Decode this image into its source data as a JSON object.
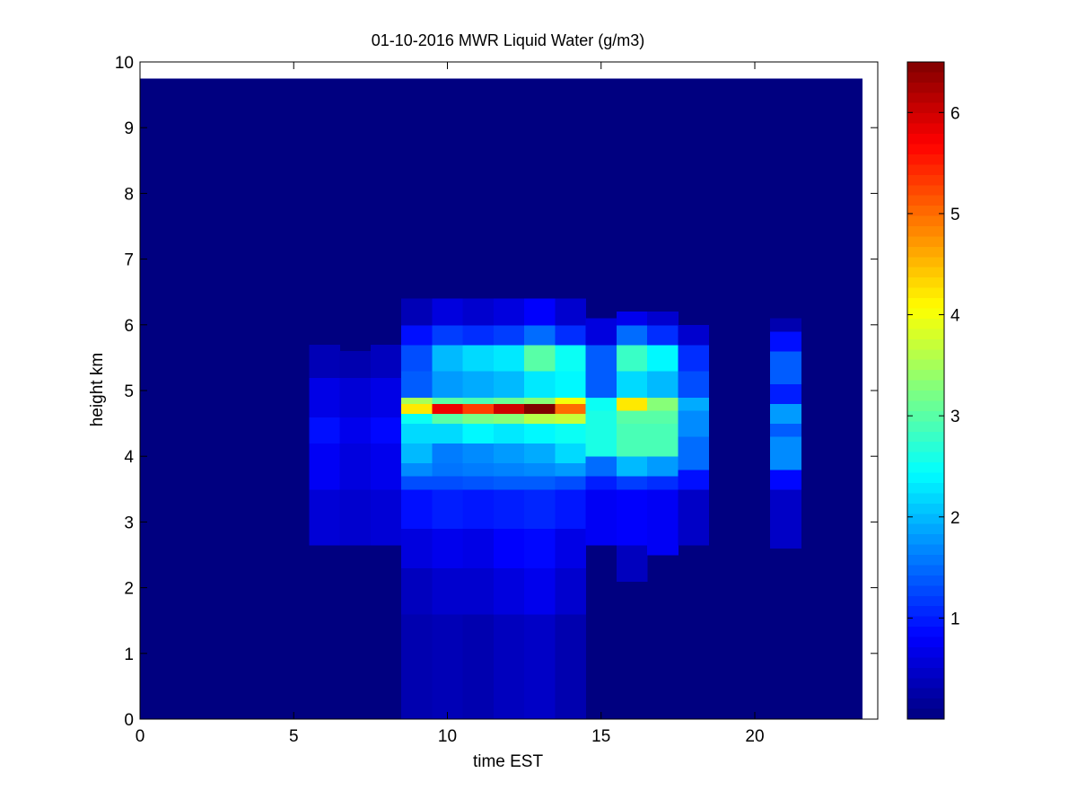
{
  "chart_data": {
    "type": "heatmap",
    "title": "01-10-2016 MWR Liquid Water (g/m3)",
    "xlabel": "time EST",
    "ylabel": "height km",
    "xlim": [
      0,
      24
    ],
    "ylim": [
      0,
      10
    ],
    "x_ticks": [
      0,
      5,
      10,
      15,
      20
    ],
    "y_ticks": [
      0,
      1,
      2,
      3,
      4,
      5,
      6,
      7,
      8,
      9,
      10
    ],
    "colorbar": {
      "range": [
        0,
        6.5
      ],
      "ticks": [
        1,
        2,
        3,
        4,
        5,
        6
      ],
      "colormap": "jet"
    },
    "field_extent": {
      "x": [
        0,
        23.5
      ],
      "y": [
        0,
        9.75
      ]
    },
    "background_value": 0,
    "columns": [
      {
        "x": [
          5.5,
          6.5
        ],
        "cells": [
          [
            2.65,
            3.5,
            0.55
          ],
          [
            3.5,
            4.2,
            0.75
          ],
          [
            4.2,
            4.6,
            0.9
          ],
          [
            4.6,
            5.2,
            0.65
          ],
          [
            5.2,
            5.7,
            0.35
          ]
        ]
      },
      {
        "x": [
          6.5,
          7.5
        ],
        "cells": [
          [
            2.65,
            3.5,
            0.5
          ],
          [
            3.5,
            4.2,
            0.6
          ],
          [
            4.2,
            4.6,
            0.7
          ],
          [
            4.6,
            5.2,
            0.55
          ],
          [
            5.2,
            5.6,
            0.3
          ]
        ]
      },
      {
        "x": [
          7.5,
          8.5
        ],
        "cells": [
          [
            2.65,
            3.5,
            0.55
          ],
          [
            3.5,
            4.2,
            0.7
          ],
          [
            4.2,
            4.6,
            0.85
          ],
          [
            4.6,
            5.2,
            0.65
          ],
          [
            5.2,
            5.7,
            0.4
          ]
        ]
      },
      {
        "x": [
          8.5,
          9.5
        ],
        "cells": [
          [
            0,
            1.6,
            0.3
          ],
          [
            1.6,
            2.3,
            0.4
          ],
          [
            2.3,
            2.9,
            0.6
          ],
          [
            2.9,
            3.5,
            0.9
          ],
          [
            3.5,
            3.7,
            1.3
          ],
          [
            3.7,
            3.9,
            1.7
          ],
          [
            3.9,
            4.2,
            2.0
          ],
          [
            4.2,
            4.5,
            2.2
          ],
          [
            4.5,
            4.65,
            2.5
          ],
          [
            4.65,
            4.8,
            4.2
          ],
          [
            4.8,
            4.9,
            3.5
          ],
          [
            4.9,
            5.3,
            1.4
          ],
          [
            5.3,
            5.7,
            1.3
          ],
          [
            5.7,
            6.0,
            0.9
          ],
          [
            6.0,
            6.4,
            0.35
          ]
        ]
      },
      {
        "x": [
          9.5,
          10.5
        ],
        "cells": [
          [
            0,
            1.6,
            0.35
          ],
          [
            1.6,
            2.3,
            0.5
          ],
          [
            2.3,
            2.9,
            0.7
          ],
          [
            2.9,
            3.5,
            1.0
          ],
          [
            3.5,
            3.7,
            1.3
          ],
          [
            3.7,
            3.9,
            1.55
          ],
          [
            3.9,
            4.2,
            1.6
          ],
          [
            4.2,
            4.5,
            2.2
          ],
          [
            4.5,
            4.65,
            3.0
          ],
          [
            4.65,
            4.8,
            5.8
          ],
          [
            4.8,
            4.9,
            3.0
          ],
          [
            4.9,
            5.3,
            1.8
          ],
          [
            5.3,
            5.7,
            2.0
          ],
          [
            5.7,
            6.0,
            1.2
          ],
          [
            6.0,
            6.4,
            0.6
          ]
        ]
      },
      {
        "x": [
          10.5,
          11.5
        ],
        "cells": [
          [
            0,
            1.6,
            0.3
          ],
          [
            1.6,
            2.3,
            0.5
          ],
          [
            2.3,
            2.9,
            0.65
          ],
          [
            2.9,
            3.5,
            0.95
          ],
          [
            3.5,
            3.7,
            1.35
          ],
          [
            3.7,
            3.9,
            1.6
          ],
          [
            3.9,
            4.2,
            1.7
          ],
          [
            4.2,
            4.5,
            2.4
          ],
          [
            4.5,
            4.65,
            3.2
          ],
          [
            4.65,
            4.8,
            5.3
          ],
          [
            4.8,
            4.9,
            2.9
          ],
          [
            4.9,
            5.3,
            1.9
          ],
          [
            5.3,
            5.7,
            2.2
          ],
          [
            5.7,
            6.0,
            1.1
          ],
          [
            6.0,
            6.4,
            0.5
          ]
        ]
      },
      {
        "x": [
          11.5,
          12.5
        ],
        "cells": [
          [
            0,
            1.6,
            0.4
          ],
          [
            1.6,
            2.3,
            0.6
          ],
          [
            2.3,
            2.9,
            0.8
          ],
          [
            2.9,
            3.5,
            1.0
          ],
          [
            3.5,
            3.7,
            1.4
          ],
          [
            3.7,
            3.9,
            1.65
          ],
          [
            3.9,
            4.2,
            1.8
          ],
          [
            4.2,
            4.5,
            2.3
          ],
          [
            4.5,
            4.65,
            3.3
          ],
          [
            4.65,
            4.8,
            6.0
          ],
          [
            4.8,
            4.9,
            3.1
          ],
          [
            4.9,
            5.3,
            2.0
          ],
          [
            5.3,
            5.7,
            2.3
          ],
          [
            5.7,
            6.0,
            1.2
          ],
          [
            6.0,
            6.4,
            0.6
          ]
        ]
      },
      {
        "x": [
          12.5,
          13.5
        ],
        "cells": [
          [
            0,
            1.6,
            0.45
          ],
          [
            1.6,
            2.3,
            0.7
          ],
          [
            2.3,
            2.9,
            0.85
          ],
          [
            2.9,
            3.5,
            1.05
          ],
          [
            3.5,
            3.7,
            1.4
          ],
          [
            3.7,
            3.9,
            1.7
          ],
          [
            3.9,
            4.2,
            1.9
          ],
          [
            4.2,
            4.5,
            2.4
          ],
          [
            4.5,
            4.65,
            3.6
          ],
          [
            4.65,
            4.8,
            6.5
          ],
          [
            4.8,
            4.9,
            3.3
          ],
          [
            4.9,
            5.3,
            2.3
          ],
          [
            5.3,
            5.7,
            3.0
          ],
          [
            5.7,
            6.0,
            1.5
          ],
          [
            6.0,
            6.4,
            0.8
          ]
        ]
      },
      {
        "x": [
          13.5,
          14.5
        ],
        "cells": [
          [
            0,
            1.6,
            0.3
          ],
          [
            1.6,
            2.3,
            0.5
          ],
          [
            2.3,
            2.9,
            0.65
          ],
          [
            2.9,
            3.5,
            0.95
          ],
          [
            3.5,
            3.7,
            1.3
          ],
          [
            3.7,
            3.9,
            1.8
          ],
          [
            3.9,
            4.2,
            2.2
          ],
          [
            4.2,
            4.5,
            2.5
          ],
          [
            4.5,
            4.65,
            3.7
          ],
          [
            4.65,
            4.8,
            5.0
          ],
          [
            4.8,
            4.9,
            4.0
          ],
          [
            4.9,
            5.3,
            2.4
          ],
          [
            5.3,
            5.7,
            2.5
          ],
          [
            5.7,
            6.0,
            1.1
          ],
          [
            6.0,
            6.4,
            0.5
          ]
        ]
      },
      {
        "x": [
          14.5,
          15.5
        ],
        "cells": [
          [
            2.65,
            3.5,
            0.75
          ],
          [
            3.5,
            3.7,
            1.0
          ],
          [
            3.7,
            4.0,
            1.5
          ],
          [
            4.0,
            4.5,
            2.6
          ],
          [
            4.5,
            4.7,
            2.6
          ],
          [
            4.7,
            4.9,
            2.5
          ],
          [
            4.9,
            5.7,
            1.4
          ],
          [
            5.7,
            6.1,
            0.6
          ]
        ]
      },
      {
        "x": [
          15.5,
          16.5
        ],
        "cells": [
          [
            2.1,
            2.65,
            0.4
          ],
          [
            2.65,
            3.5,
            0.8
          ],
          [
            3.5,
            3.7,
            1.2
          ],
          [
            3.7,
            4.0,
            2.0
          ],
          [
            4.0,
            4.5,
            2.9
          ],
          [
            4.5,
            4.7,
            3.0
          ],
          [
            4.7,
            4.9,
            4.2
          ],
          [
            4.9,
            5.3,
            2.2
          ],
          [
            5.3,
            5.7,
            2.8
          ],
          [
            5.7,
            6.0,
            1.5
          ],
          [
            6.0,
            6.2,
            0.7
          ]
        ]
      },
      {
        "x": [
          16.5,
          17.5
        ],
        "cells": [
          [
            2.5,
            3.5,
            0.75
          ],
          [
            3.5,
            3.7,
            1.1
          ],
          [
            3.7,
            4.0,
            1.8
          ],
          [
            4.0,
            4.5,
            2.9
          ],
          [
            4.5,
            4.7,
            3.0
          ],
          [
            4.7,
            4.9,
            3.3
          ],
          [
            4.9,
            5.3,
            2.0
          ],
          [
            5.3,
            5.7,
            2.4
          ],
          [
            5.7,
            6.0,
            1.1
          ],
          [
            6.0,
            6.2,
            0.5
          ]
        ]
      },
      {
        "x": [
          17.5,
          18.5
        ],
        "cells": [
          [
            2.65,
            3.5,
            0.45
          ],
          [
            3.5,
            3.8,
            0.9
          ],
          [
            3.8,
            4.3,
            1.5
          ],
          [
            4.3,
            4.7,
            1.7
          ],
          [
            4.7,
            4.9,
            1.9
          ],
          [
            4.9,
            5.3,
            1.3
          ],
          [
            5.3,
            5.7,
            1.1
          ],
          [
            5.7,
            6.0,
            0.5
          ]
        ]
      },
      {
        "x": [
          20.5,
          21.5
        ],
        "cells": [
          [
            2.6,
            3.5,
            0.45
          ],
          [
            3.5,
            3.8,
            0.85
          ],
          [
            3.8,
            4.3,
            1.7
          ],
          [
            4.3,
            4.5,
            1.4
          ],
          [
            4.5,
            4.8,
            1.8
          ],
          [
            4.8,
            5.1,
            1.0
          ],
          [
            5.1,
            5.6,
            1.4
          ],
          [
            5.6,
            5.9,
            0.9
          ],
          [
            5.9,
            6.1,
            0.3
          ]
        ]
      }
    ]
  }
}
